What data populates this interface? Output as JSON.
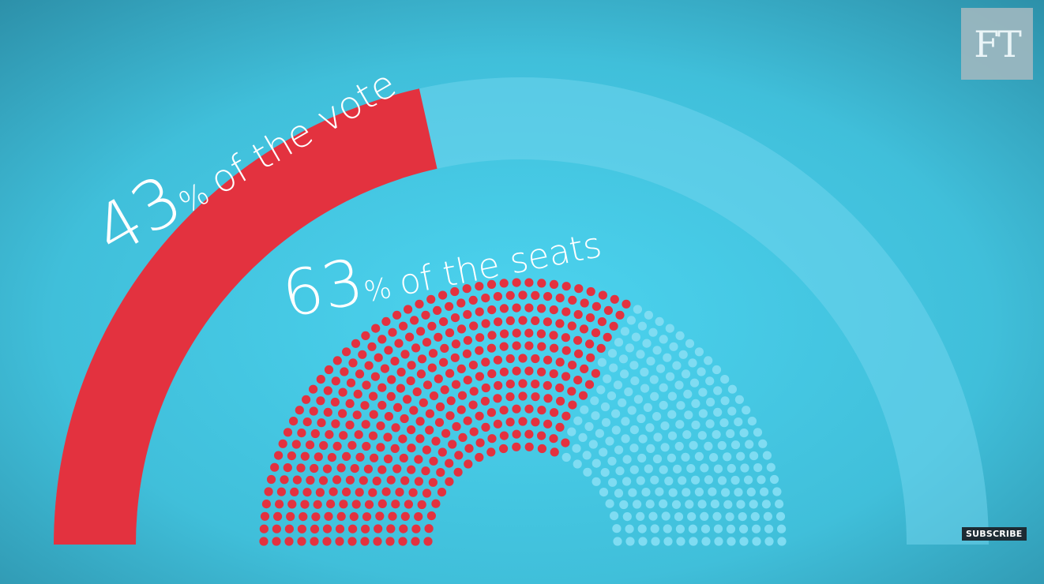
{
  "brand": {
    "logo_text": "FT",
    "subscribe_label": "SUBSCRIBE"
  },
  "colors": {
    "background": "#3fb8d4",
    "highlight": "#e3323f",
    "dim_seat": "#7fdcf2",
    "vote_track": "#6fd3ec",
    "text": "#ffffff"
  },
  "chart_data": [
    {
      "type": "gauge",
      "series": [
        {
          "name": "",
          "value": 43,
          "unit": "%"
        }
      ],
      "label_value": "43",
      "label_pct": "%",
      "label_text": "of the vote"
    },
    {
      "type": "parliament",
      "series": [
        {
          "name": "",
          "value": 63,
          "unit": "%"
        }
      ],
      "label_value": "63",
      "label_pct": "%",
      "label_text": "of the seats"
    }
  ]
}
